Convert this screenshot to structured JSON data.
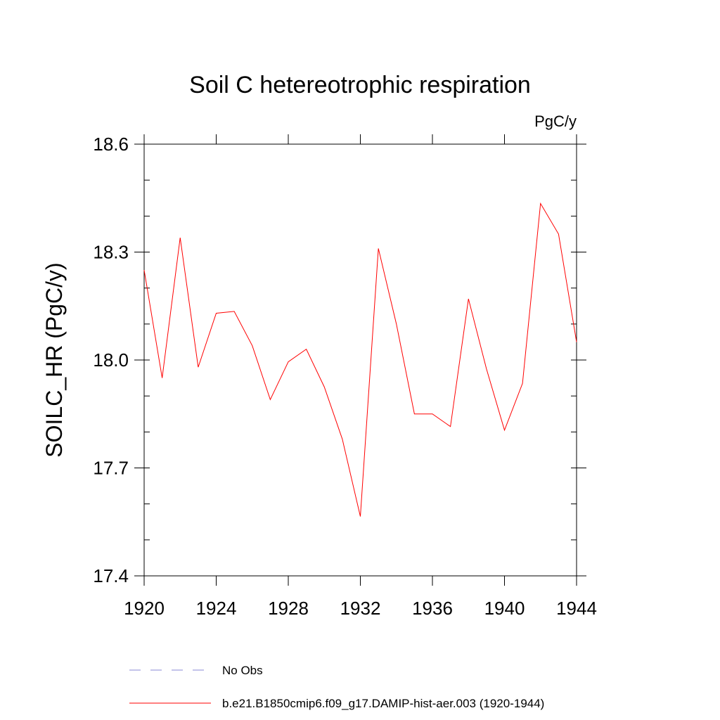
{
  "chart_data": {
    "type": "line",
    "title": "Soil C hetereotrophic respiration",
    "units": "PgC/y",
    "ylabel": "SOILC_HR  (PgC/y)",
    "xlim": [
      1920,
      1944
    ],
    "ylim": [
      17.4,
      18.6
    ],
    "xticks": [
      1920,
      1924,
      1928,
      1932,
      1936,
      1940,
      1944
    ],
    "xtick_labels": [
      "1920",
      "1924",
      "1928",
      "1932",
      "1936",
      "1940",
      "1944"
    ],
    "yticks": [
      17.4,
      17.7,
      18.0,
      18.3,
      18.6
    ],
    "ytick_labels": [
      "17.4",
      "17.7",
      "18.0",
      "18.3",
      "18.6"
    ],
    "grid": false,
    "series": [
      {
        "name": "b.e21.B1850cmip6.f09_g17.DAMIP-hist-aer.003 (1920-1944)",
        "color": "#ff0000",
        "style": "solid",
        "x": [
          1920,
          1921,
          1922,
          1923,
          1924,
          1925,
          1926,
          1927,
          1928,
          1929,
          1930,
          1931,
          1932,
          1933,
          1934,
          1935,
          1936,
          1937,
          1938,
          1939,
          1940,
          1941,
          1942,
          1943,
          1944
        ],
        "values": [
          18.25,
          17.95,
          18.34,
          17.98,
          18.13,
          18.135,
          18.04,
          17.89,
          17.995,
          18.03,
          17.925,
          17.78,
          17.565,
          18.31,
          18.1,
          17.85,
          17.85,
          17.815,
          18.17,
          17.975,
          17.805,
          17.935,
          18.435,
          18.35,
          18.05
        ]
      }
    ],
    "legend": {
      "placement": "bottom",
      "entries": [
        {
          "label": "No Obs",
          "color": "#8a8ad6",
          "style": "dashed"
        },
        {
          "label": "b.e21.B1850cmip6.f09_g17.DAMIP-hist-aer.003 (1920-1944)",
          "color": "#ff0000",
          "style": "solid"
        }
      ]
    }
  }
}
